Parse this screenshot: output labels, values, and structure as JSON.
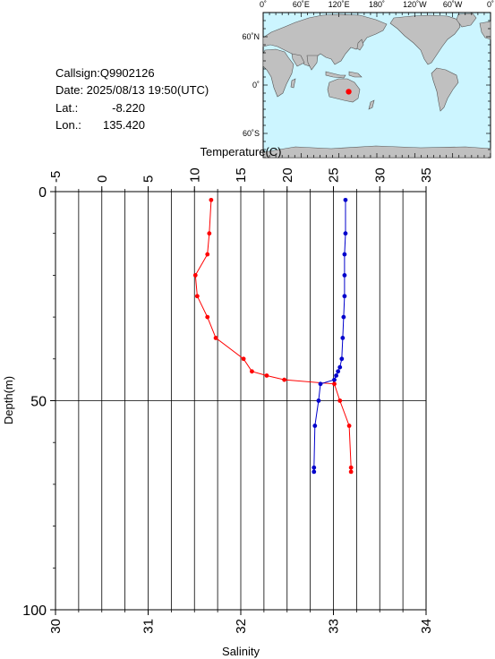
{
  "info": {
    "callsign": "Callsign:Q9902126",
    "date": "Date:  2025/08/13 19:50(UTC)",
    "lat_label": "Lat.:",
    "lat_value": "-8.220",
    "lon_label": "Lon.:",
    "lon_value": "135.420"
  },
  "map": {
    "top_labels": [
      "0˚",
      "60˚E",
      "120˚E",
      "180˚",
      "120˚W",
      "60˚W",
      "0˚"
    ],
    "lat_labels": [
      "60˚N",
      "0˚",
      "60˚S"
    ],
    "ocean_color": "#ccf5ff",
    "land_color": "#c0c0c0",
    "float_position": {
      "lat": -8.22,
      "lon": 135.42
    },
    "marker_color": "#ff0000"
  },
  "chart_data": {
    "type": "line",
    "x_top_label": "Temperature(C)",
    "x_bottom_label": "Salinity",
    "y_label": "Depth(m)",
    "temperature_axis": {
      "min": -5,
      "max": 35,
      "ticks": [
        "-5",
        "0",
        "5",
        "10",
        "15",
        "20",
        "25",
        "30",
        "35"
      ]
    },
    "salinity_axis": {
      "min": 30,
      "max": 34,
      "ticks": [
        "30",
        "31",
        "32",
        "33",
        "34"
      ]
    },
    "depth_axis": {
      "min": 0,
      "max": 100,
      "ticks": [
        "0",
        "50",
        "100"
      ],
      "inverted": true
    },
    "vertical_grid_count": 16,
    "grid": true,
    "series": [
      {
        "kind": "temperature",
        "color": "#ff0000",
        "points": [
          {
            "t": 11.8,
            "d": 2
          },
          {
            "t": 11.6,
            "d": 10
          },
          {
            "t": 11.4,
            "d": 15
          },
          {
            "t": 10.1,
            "d": 20
          },
          {
            "t": 10.3,
            "d": 25
          },
          {
            "t": 11.4,
            "d": 30
          },
          {
            "t": 12.3,
            "d": 35
          },
          {
            "t": 15.3,
            "d": 40
          },
          {
            "t": 16.2,
            "d": 43
          },
          {
            "t": 17.8,
            "d": 44
          },
          {
            "t": 19.7,
            "d": 45
          },
          {
            "t": 25.1,
            "d": 46
          },
          {
            "t": 25.7,
            "d": 50
          },
          {
            "t": 26.7,
            "d": 56
          },
          {
            "t": 26.9,
            "d": 66
          },
          {
            "t": 26.9,
            "d": 67
          }
        ]
      },
      {
        "kind": "salinity",
        "color": "#0000cc",
        "points": [
          {
            "s": 33.13,
            "d": 2
          },
          {
            "s": 33.13,
            "d": 10
          },
          {
            "s": 33.12,
            "d": 15
          },
          {
            "s": 33.12,
            "d": 20
          },
          {
            "s": 33.12,
            "d": 25
          },
          {
            "s": 33.11,
            "d": 30
          },
          {
            "s": 33.1,
            "d": 35
          },
          {
            "s": 33.09,
            "d": 40
          },
          {
            "s": 33.07,
            "d": 42
          },
          {
            "s": 33.05,
            "d": 43
          },
          {
            "s": 33.03,
            "d": 44
          },
          {
            "s": 33.01,
            "d": 45
          },
          {
            "s": 32.86,
            "d": 46
          },
          {
            "s": 32.84,
            "d": 50
          },
          {
            "s": 32.8,
            "d": 56
          },
          {
            "s": 32.79,
            "d": 66
          },
          {
            "s": 32.79,
            "d": 67
          }
        ]
      }
    ]
  }
}
